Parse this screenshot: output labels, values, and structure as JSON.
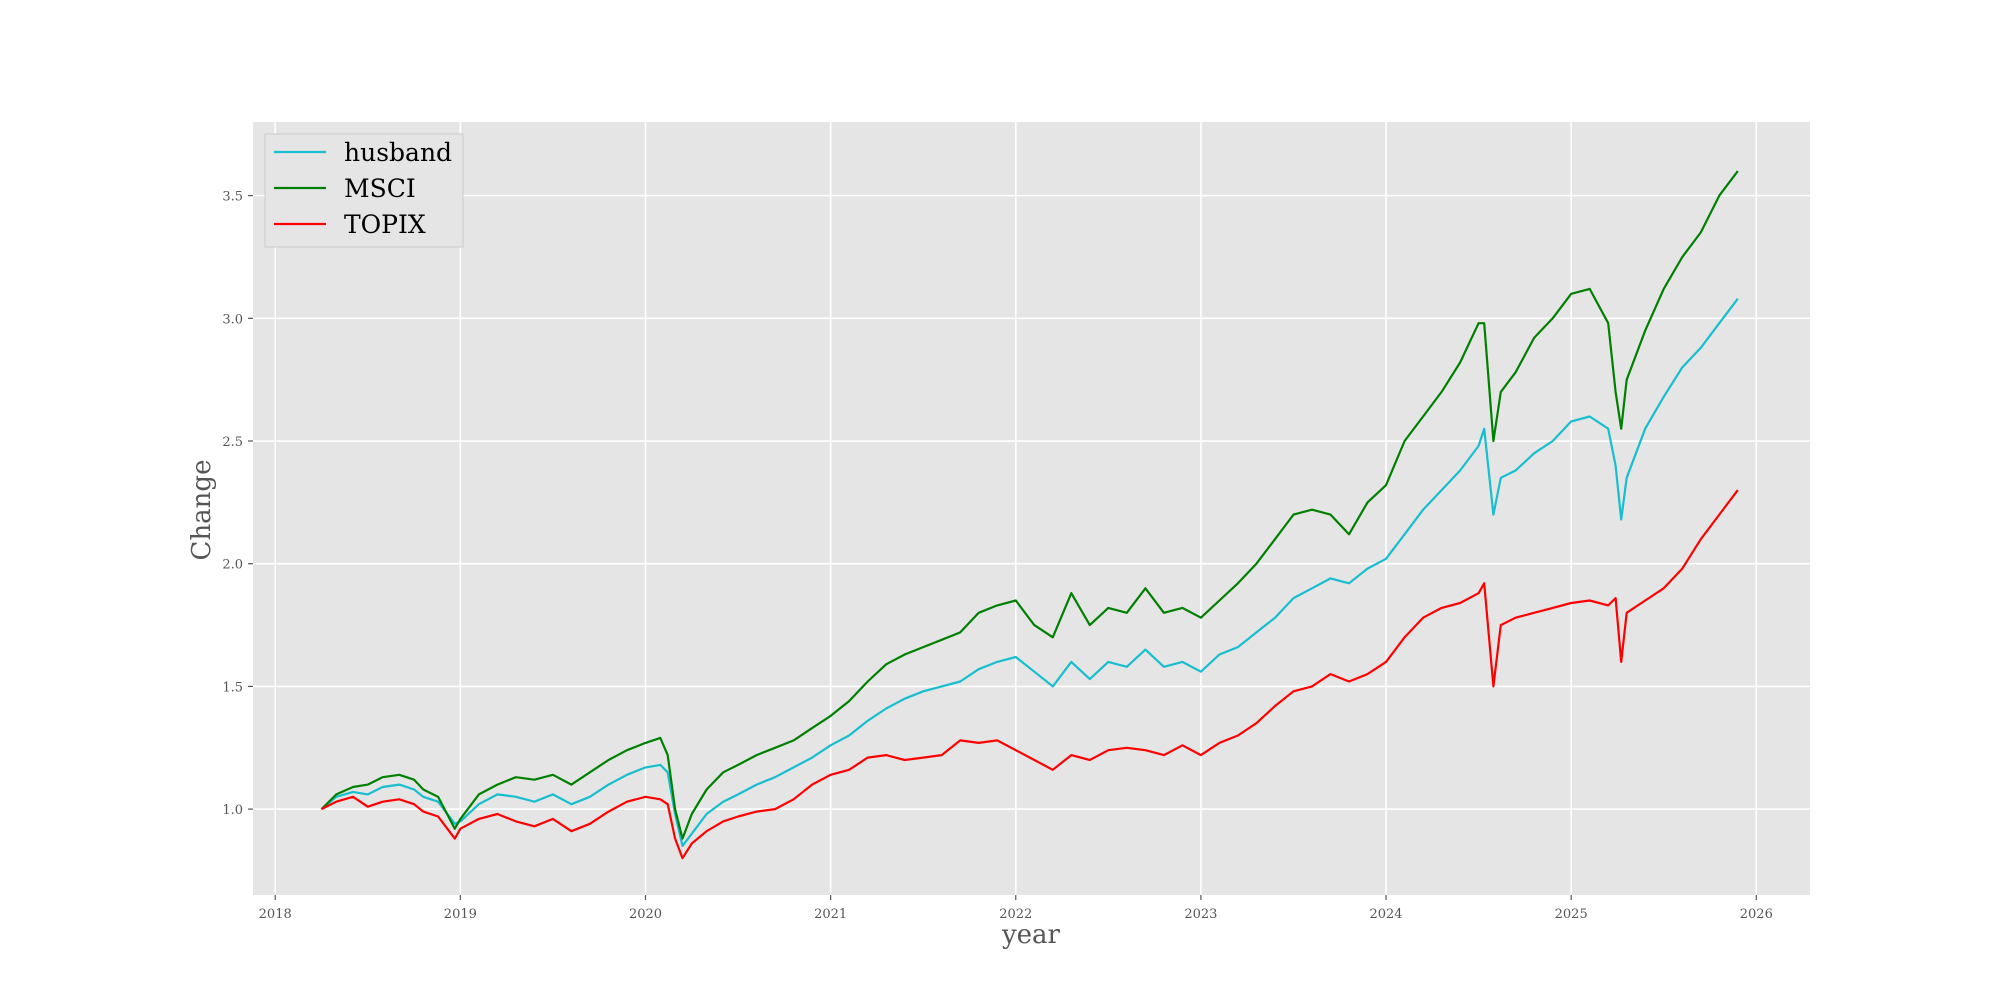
{
  "colors": {
    "plot_background": "#e5e5e5",
    "grid": "#ffffff",
    "axis_text": "#555555"
  },
  "chart_data": {
    "type": "line",
    "title": "",
    "xlabel": "year",
    "ylabel": "Change",
    "xlim": [
      2017.88,
      2026.29
    ],
    "ylim": [
      0.65,
      3.8
    ],
    "x_ticks": [
      2018,
      2019,
      2020,
      2021,
      2022,
      2023,
      2024,
      2025,
      2026
    ],
    "x_tick_labels": [
      "2018",
      "2019",
      "2020",
      "2021",
      "2022",
      "2023",
      "2024",
      "2025",
      "2026"
    ],
    "y_ticks": [
      1.0,
      1.5,
      2.0,
      2.5,
      3.0,
      3.5
    ],
    "y_tick_labels": [
      "1.0",
      "1.5",
      "2.0",
      "2.5",
      "3.0",
      "3.5"
    ],
    "grid": true,
    "legend_position": "top-left",
    "x": [
      2018.25,
      2018.33,
      2018.42,
      2018.5,
      2018.58,
      2018.67,
      2018.75,
      2018.8,
      2018.88,
      2018.97,
      2019.0,
      2019.1,
      2019.2,
      2019.3,
      2019.4,
      2019.5,
      2019.6,
      2019.7,
      2019.8,
      2019.9,
      2020.0,
      2020.08,
      2020.12,
      2020.16,
      2020.2,
      2020.25,
      2020.33,
      2020.42,
      2020.5,
      2020.6,
      2020.7,
      2020.8,
      2020.9,
      2021.0,
      2021.1,
      2021.2,
      2021.3,
      2021.4,
      2021.5,
      2021.6,
      2021.7,
      2021.8,
      2021.9,
      2022.0,
      2022.1,
      2022.2,
      2022.3,
      2022.4,
      2022.5,
      2022.6,
      2022.7,
      2022.8,
      2022.9,
      2023.0,
      2023.1,
      2023.2,
      2023.3,
      2023.4,
      2023.5,
      2023.6,
      2023.7,
      2023.8,
      2023.9,
      2024.0,
      2024.1,
      2024.2,
      2024.3,
      2024.4,
      2024.5,
      2024.53,
      2024.58,
      2024.62,
      2024.7,
      2024.8,
      2024.9,
      2025.0,
      2025.1,
      2025.2,
      2025.24,
      2025.27,
      2025.3,
      2025.4,
      2025.5,
      2025.6,
      2025.7,
      2025.8,
      2025.9
    ],
    "series": [
      {
        "name": "husband",
        "color": "#17becf",
        "values": [
          1.0,
          1.05,
          1.07,
          1.06,
          1.09,
          1.1,
          1.08,
          1.05,
          1.03,
          0.94,
          0.95,
          1.02,
          1.06,
          1.05,
          1.03,
          1.06,
          1.02,
          1.05,
          1.1,
          1.14,
          1.17,
          1.18,
          1.15,
          0.98,
          0.85,
          0.9,
          0.98,
          1.03,
          1.06,
          1.1,
          1.13,
          1.17,
          1.21,
          1.26,
          1.3,
          1.36,
          1.41,
          1.45,
          1.48,
          1.5,
          1.52,
          1.57,
          1.6,
          1.62,
          1.56,
          1.5,
          1.6,
          1.53,
          1.6,
          1.58,
          1.65,
          1.58,
          1.6,
          1.56,
          1.63,
          1.66,
          1.72,
          1.78,
          1.86,
          1.9,
          1.94,
          1.92,
          1.98,
          2.02,
          2.12,
          2.22,
          2.3,
          2.38,
          2.48,
          2.55,
          2.2,
          2.35,
          2.38,
          2.45,
          2.5,
          2.58,
          2.6,
          2.55,
          2.4,
          2.18,
          2.35,
          2.55,
          2.68,
          2.8,
          2.88,
          2.98,
          3.08
        ]
      },
      {
        "name": "MSCI",
        "color": "#008000",
        "values": [
          1.0,
          1.06,
          1.09,
          1.1,
          1.13,
          1.14,
          1.12,
          1.08,
          1.05,
          0.92,
          0.96,
          1.06,
          1.1,
          1.13,
          1.12,
          1.14,
          1.1,
          1.15,
          1.2,
          1.24,
          1.27,
          1.29,
          1.22,
          1.0,
          0.88,
          0.98,
          1.08,
          1.15,
          1.18,
          1.22,
          1.25,
          1.28,
          1.33,
          1.38,
          1.44,
          1.52,
          1.59,
          1.63,
          1.66,
          1.69,
          1.72,
          1.8,
          1.83,
          1.85,
          1.75,
          1.7,
          1.88,
          1.75,
          1.82,
          1.8,
          1.9,
          1.8,
          1.82,
          1.78,
          1.85,
          1.92,
          2.0,
          2.1,
          2.2,
          2.22,
          2.2,
          2.12,
          2.25,
          2.32,
          2.5,
          2.6,
          2.7,
          2.82,
          2.98,
          2.98,
          2.5,
          2.7,
          2.78,
          2.92,
          3.0,
          3.1,
          3.12,
          2.98,
          2.7,
          2.55,
          2.75,
          2.95,
          3.12,
          3.25,
          3.35,
          3.5,
          3.6
        ]
      },
      {
        "name": "TOPIX",
        "color": "#ff0000",
        "values": [
          1.0,
          1.03,
          1.05,
          1.01,
          1.03,
          1.04,
          1.02,
          0.99,
          0.97,
          0.88,
          0.92,
          0.96,
          0.98,
          0.95,
          0.93,
          0.96,
          0.91,
          0.94,
          0.99,
          1.03,
          1.05,
          1.04,
          1.02,
          0.88,
          0.8,
          0.86,
          0.91,
          0.95,
          0.97,
          0.99,
          1.0,
          1.04,
          1.1,
          1.14,
          1.16,
          1.21,
          1.22,
          1.2,
          1.21,
          1.22,
          1.28,
          1.27,
          1.28,
          1.24,
          1.2,
          1.16,
          1.22,
          1.2,
          1.24,
          1.25,
          1.24,
          1.22,
          1.26,
          1.22,
          1.27,
          1.3,
          1.35,
          1.42,
          1.48,
          1.5,
          1.55,
          1.52,
          1.55,
          1.6,
          1.7,
          1.78,
          1.82,
          1.84,
          1.88,
          1.92,
          1.5,
          1.75,
          1.78,
          1.8,
          1.82,
          1.84,
          1.85,
          1.83,
          1.86,
          1.6,
          1.8,
          1.85,
          1.9,
          1.98,
          2.1,
          2.2,
          2.3
        ]
      }
    ]
  }
}
